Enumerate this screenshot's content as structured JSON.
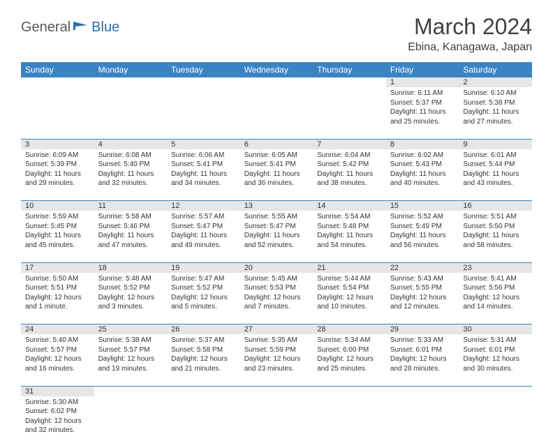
{
  "brand": {
    "part1": "General",
    "part2": "Blue"
  },
  "title": "March 2024",
  "location": "Ebina, Kanagawa, Japan",
  "colors": {
    "header_bg": "#3b84c4",
    "header_text": "#ffffff",
    "daynum_bg": "#e6e6e6",
    "border": "#3b84c4",
    "brand_blue": "#2b6fab",
    "brand_gray": "#5a5a5a"
  },
  "weekdays": [
    "Sunday",
    "Monday",
    "Tuesday",
    "Wednesday",
    "Thursday",
    "Friday",
    "Saturday"
  ],
  "weeks": [
    {
      "nums": [
        "",
        "",
        "",
        "",
        "",
        "1",
        "2"
      ],
      "cells": [
        null,
        null,
        null,
        null,
        null,
        {
          "sunrise": "6:11 AM",
          "sunset": "5:37 PM",
          "daylight": "11 hours and 25 minutes."
        },
        {
          "sunrise": "6:10 AM",
          "sunset": "5:38 PM",
          "daylight": "11 hours and 27 minutes."
        }
      ]
    },
    {
      "nums": [
        "3",
        "4",
        "5",
        "6",
        "7",
        "8",
        "9"
      ],
      "cells": [
        {
          "sunrise": "6:09 AM",
          "sunset": "5:39 PM",
          "daylight": "11 hours and 29 minutes."
        },
        {
          "sunrise": "6:08 AM",
          "sunset": "5:40 PM",
          "daylight": "11 hours and 32 minutes."
        },
        {
          "sunrise": "6:06 AM",
          "sunset": "5:41 PM",
          "daylight": "11 hours and 34 minutes."
        },
        {
          "sunrise": "6:05 AM",
          "sunset": "5:41 PM",
          "daylight": "11 hours and 36 minutes."
        },
        {
          "sunrise": "6:04 AM",
          "sunset": "5:42 PM",
          "daylight": "11 hours and 38 minutes."
        },
        {
          "sunrise": "6:02 AM",
          "sunset": "5:43 PM",
          "daylight": "11 hours and 40 minutes."
        },
        {
          "sunrise": "6:01 AM",
          "sunset": "5:44 PM",
          "daylight": "11 hours and 43 minutes."
        }
      ]
    },
    {
      "nums": [
        "10",
        "11",
        "12",
        "13",
        "14",
        "15",
        "16"
      ],
      "cells": [
        {
          "sunrise": "5:59 AM",
          "sunset": "5:45 PM",
          "daylight": "11 hours and 45 minutes."
        },
        {
          "sunrise": "5:58 AM",
          "sunset": "5:46 PM",
          "daylight": "11 hours and 47 minutes."
        },
        {
          "sunrise": "5:57 AM",
          "sunset": "5:47 PM",
          "daylight": "11 hours and 49 minutes."
        },
        {
          "sunrise": "5:55 AM",
          "sunset": "5:47 PM",
          "daylight": "11 hours and 52 minutes."
        },
        {
          "sunrise": "5:54 AM",
          "sunset": "5:48 PM",
          "daylight": "11 hours and 54 minutes."
        },
        {
          "sunrise": "5:52 AM",
          "sunset": "5:49 PM",
          "daylight": "11 hours and 56 minutes."
        },
        {
          "sunrise": "5:51 AM",
          "sunset": "5:50 PM",
          "daylight": "11 hours and 58 minutes."
        }
      ]
    },
    {
      "nums": [
        "17",
        "18",
        "19",
        "20",
        "21",
        "22",
        "23"
      ],
      "cells": [
        {
          "sunrise": "5:50 AM",
          "sunset": "5:51 PM",
          "daylight": "12 hours and 1 minute."
        },
        {
          "sunrise": "5:48 AM",
          "sunset": "5:52 PM",
          "daylight": "12 hours and 3 minutes."
        },
        {
          "sunrise": "5:47 AM",
          "sunset": "5:52 PM",
          "daylight": "12 hours and 5 minutes."
        },
        {
          "sunrise": "5:45 AM",
          "sunset": "5:53 PM",
          "daylight": "12 hours and 7 minutes."
        },
        {
          "sunrise": "5:44 AM",
          "sunset": "5:54 PM",
          "daylight": "12 hours and 10 minutes."
        },
        {
          "sunrise": "5:43 AM",
          "sunset": "5:55 PM",
          "daylight": "12 hours and 12 minutes."
        },
        {
          "sunrise": "5:41 AM",
          "sunset": "5:56 PM",
          "daylight": "12 hours and 14 minutes."
        }
      ]
    },
    {
      "nums": [
        "24",
        "25",
        "26",
        "27",
        "28",
        "29",
        "30"
      ],
      "cells": [
        {
          "sunrise": "5:40 AM",
          "sunset": "5:57 PM",
          "daylight": "12 hours and 16 minutes."
        },
        {
          "sunrise": "5:38 AM",
          "sunset": "5:57 PM",
          "daylight": "12 hours and 19 minutes."
        },
        {
          "sunrise": "5:37 AM",
          "sunset": "5:58 PM",
          "daylight": "12 hours and 21 minutes."
        },
        {
          "sunrise": "5:35 AM",
          "sunset": "5:59 PM",
          "daylight": "12 hours and 23 minutes."
        },
        {
          "sunrise": "5:34 AM",
          "sunset": "6:00 PM",
          "daylight": "12 hours and 25 minutes."
        },
        {
          "sunrise": "5:33 AM",
          "sunset": "6:01 PM",
          "daylight": "12 hours and 28 minutes."
        },
        {
          "sunrise": "5:31 AM",
          "sunset": "6:01 PM",
          "daylight": "12 hours and 30 minutes."
        }
      ]
    },
    {
      "nums": [
        "31",
        "",
        "",
        "",
        "",
        "",
        ""
      ],
      "cells": [
        {
          "sunrise": "5:30 AM",
          "sunset": "6:02 PM",
          "daylight": "12 hours and 32 minutes."
        },
        null,
        null,
        null,
        null,
        null,
        null
      ]
    }
  ],
  "labels": {
    "sunrise": "Sunrise:",
    "sunset": "Sunset:",
    "daylight": "Daylight:"
  }
}
